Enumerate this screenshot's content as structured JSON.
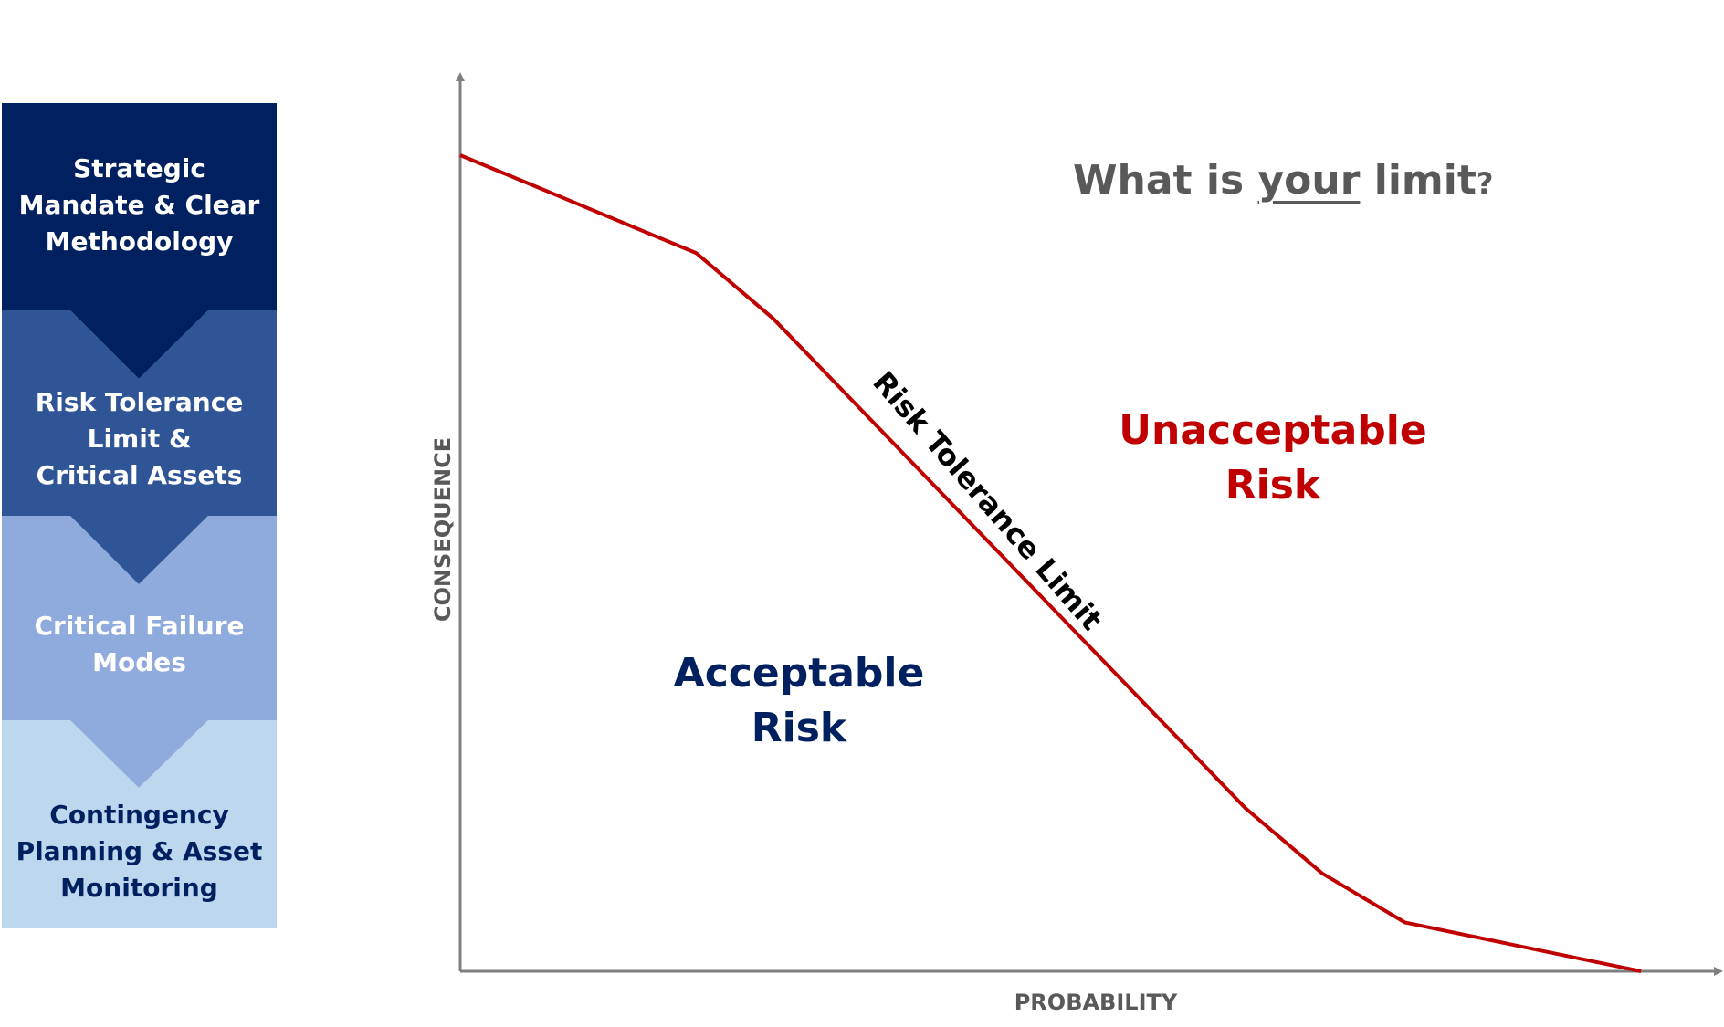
{
  "process": {
    "steps": [
      {
        "label": "Strategic\nMandate & Clear\nMethodology",
        "fill": "#002060",
        "text_color": "#ffffff"
      },
      {
        "label": "Risk Tolerance\nLimit &\nCritical Assets",
        "fill": "#2F5597",
        "text_color": "#ffffff"
      },
      {
        "label": "Critical Failure\nModes",
        "fill": "#8FAADC",
        "text_color": "#ffffff"
      },
      {
        "label": "Contingency\nPlanning & Asset\nMonitoring",
        "fill": "#BDD7EE",
        "text_color": "#002060"
      }
    ]
  },
  "chart": {
    "x_axis_label": "PROBABILITY",
    "y_axis_label": "CONSEQUENCE",
    "curve_label": "Risk Tolerance Limit",
    "curve_color": "#C00000",
    "axis_color": "#7F7F7F",
    "curve_points": [
      [
        0,
        1.0
      ],
      [
        0.2,
        0.88
      ],
      [
        0.265,
        0.8
      ],
      [
        0.665,
        0.2
      ],
      [
        0.73,
        0.12
      ],
      [
        0.8,
        0.06
      ],
      [
        1.0,
        0.0
      ]
    ],
    "regions": {
      "unacceptable": {
        "line1": "Unacceptable",
        "line2": "Risk",
        "color": "#C00000"
      },
      "acceptable": {
        "line1": "Acceptable",
        "line2": "Risk",
        "color": "#002060"
      }
    },
    "question": {
      "before": "What is ",
      "emphasis": "your",
      "after": " limit",
      "qmark": "?"
    }
  }
}
